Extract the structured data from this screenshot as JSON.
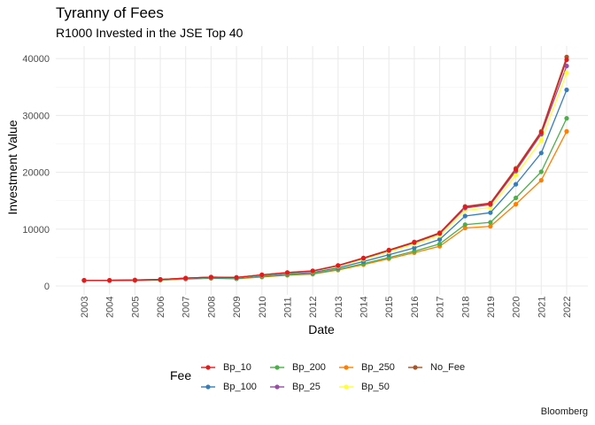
{
  "title": "Tyranny of Fees",
  "subtitle": "R1000 Invested in the JSE Top 40",
  "caption": "Bloomberg",
  "legend_title": "Fee",
  "chart_data": {
    "type": "line",
    "title": "Tyranny of Fees",
    "subtitle": "R1000 Invested in the JSE Top 40",
    "xlabel": "Date",
    "ylabel": "Investment Value",
    "x": [
      "2003",
      "2004",
      "2005",
      "2006",
      "2007",
      "2008",
      "2009",
      "2010",
      "2011",
      "2012",
      "2013",
      "2014",
      "2015",
      "2016",
      "2017",
      "2018",
      "2019",
      "2020",
      "2021",
      "2022"
    ],
    "ylim": [
      0,
      41500
    ],
    "yticks": [
      0,
      10000,
      20000,
      30000,
      40000
    ],
    "ytick_labels": [
      "0",
      "10000",
      "20000",
      "30000",
      "40000"
    ],
    "grid": true,
    "legend_position": "bottom",
    "series": [
      {
        "name": "Bp_10",
        "color": "#E41A1C",
        "values": [
          1000,
          1000,
          1050,
          1150,
          1380,
          1560,
          1500,
          1960,
          2350,
          2650,
          3600,
          4900,
          6300,
          7700,
          9300,
          13900,
          14500,
          20500,
          27000,
          39800
        ]
      },
      {
        "name": "Bp_100",
        "color": "#377EB8",
        "values": [
          990,
          990,
          1020,
          1100,
          1300,
          1450,
          1380,
          1780,
          2130,
          2370,
          3200,
          4300,
          5500,
          6700,
          8200,
          12300,
          12900,
          17900,
          23400,
          34500
        ]
      },
      {
        "name": "Bp_200",
        "color": "#4DAF4A",
        "values": [
          980,
          970,
          990,
          1060,
          1240,
          1380,
          1300,
          1650,
          1950,
          2170,
          2940,
          3920,
          5000,
          6100,
          7400,
          10800,
          11200,
          15500,
          20100,
          29500
        ]
      },
      {
        "name": "Bp_25",
        "color": "#984EA3",
        "values": [
          1000,
          1000,
          1045,
          1145,
          1370,
          1550,
          1490,
          1940,
          2320,
          2620,
          3560,
          4850,
          6230,
          7620,
          9200,
          13700,
          14300,
          20200,
          26700,
          38700
        ]
      },
      {
        "name": "Bp_250",
        "color": "#FF7F00",
        "values": [
          975,
          965,
          980,
          1050,
          1220,
          1360,
          1260,
          1580,
          1880,
          2080,
          2800,
          3750,
          4800,
          5850,
          7000,
          10200,
          10500,
          14400,
          18600,
          27200
        ]
      },
      {
        "name": "Bp_50",
        "color": "#FFFF33",
        "values": [
          995,
          995,
          1035,
          1130,
          1350,
          1520,
          1460,
          1900,
          2270,
          2550,
          3460,
          4700,
          6030,
          7350,
          8900,
          13300,
          13800,
          19500,
          25600,
          37500
        ]
      },
      {
        "name": "No_Fee",
        "color": "#A65628",
        "values": [
          1000,
          1000,
          1055,
          1155,
          1385,
          1565,
          1505,
          1970,
          2360,
          2660,
          3620,
          4930,
          6330,
          7750,
          9360,
          14000,
          14600,
          20700,
          27200,
          40300
        ]
      }
    ]
  }
}
